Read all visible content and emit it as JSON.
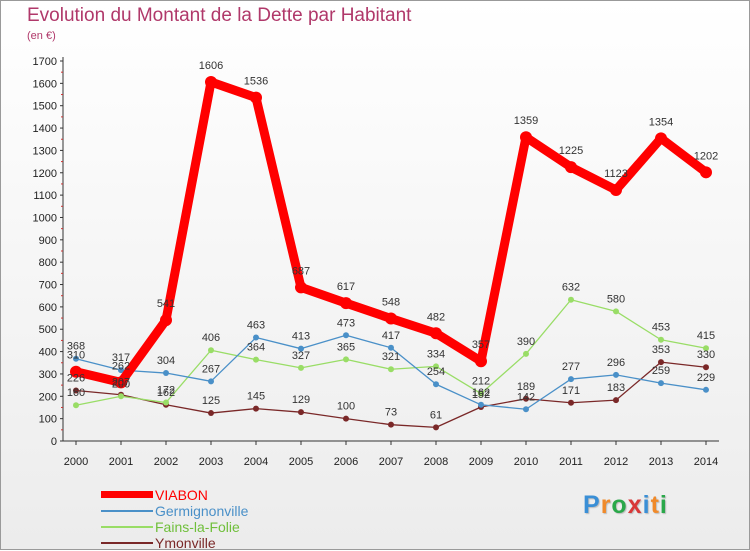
{
  "title": "Evolution du Montant de la Dette par Habitant",
  "subtitle": "(en €)",
  "colors": {
    "title": "#b0386a",
    "VIABON": "#ff0000",
    "Germignonville": "#4a90c8",
    "Fains-la-Folie": "#99dd66",
    "Ymonville": "#7a2828"
  },
  "chart_data": {
    "type": "line",
    "title": "Evolution du Montant de la Dette par Habitant",
    "ylabel": "(en €)",
    "x": [
      "2000",
      "2001",
      "2002",
      "2003",
      "2004",
      "2005",
      "2006",
      "2007",
      "2008",
      "2009",
      "2010",
      "2011",
      "2012",
      "2013",
      "2014"
    ],
    "ylim": [
      0,
      1700
    ],
    "yticks": [
      "0",
      "100",
      "200",
      "300",
      "400",
      "500",
      "600",
      "700",
      "800",
      "900",
      "1000",
      "1100",
      "1200",
      "1300",
      "1400",
      "1500",
      "1600",
      "1700"
    ],
    "grid": false,
    "legend_position": "bottom-left",
    "series": [
      {
        "name": "VIABON",
        "values": [
          310,
          262,
          541,
          1606,
          1536,
          687,
          617,
          548,
          482,
          357,
          1359,
          1225,
          1123,
          1354,
          1202
        ],
        "labels": [
          "310",
          "262",
          "541",
          "1606",
          "1536",
          "687",
          "617",
          "548",
          "482",
          "357",
          "1359",
          "1225",
          "1123",
          "1354",
          "1202"
        ]
      },
      {
        "name": "Germignonville",
        "values": [
          368,
          317,
          304,
          267,
          463,
          413,
          473,
          417,
          254,
          162,
          142,
          277,
          296,
          259,
          229
        ],
        "labels": [
          "368",
          "317",
          "304",
          "267",
          "463",
          "413",
          "473",
          "417",
          "254",
          "162",
          "142",
          "277",
          "296",
          "259",
          "229"
        ]
      },
      {
        "name": "Fains-la-Folie",
        "values": [
          160,
          200,
          172,
          406,
          364,
          327,
          365,
          321,
          334,
          212,
          390,
          632,
          580,
          453,
          415
        ],
        "labels": [
          "160",
          "200",
          "172",
          "406",
          "364",
          "327",
          "365",
          "321",
          "334",
          "212",
          "390",
          "632",
          "580",
          "453",
          "415"
        ]
      },
      {
        "name": "Ymonville",
        "values": [
          226,
          207,
          162,
          125,
          145,
          129,
          100,
          73,
          61,
          152,
          189,
          171,
          183,
          353,
          330
        ],
        "labels": [
          "226",
          "207",
          "162",
          "125",
          "145",
          "129",
          "100",
          "73",
          "61",
          "152",
          "189",
          "171",
          "183",
          "353",
          "330"
        ]
      }
    ]
  },
  "legend": [
    "VIABON",
    "Germignonville",
    "Fains-la-Folie",
    "Ymonville"
  ],
  "logo": {
    "text": "Proxiti",
    "letter_colors": [
      "#3a8fd6",
      "#f08a2a",
      "#2aa84a",
      "#d93838",
      "#3a8fd6",
      "#f08a2a",
      "#2aa84a"
    ]
  }
}
